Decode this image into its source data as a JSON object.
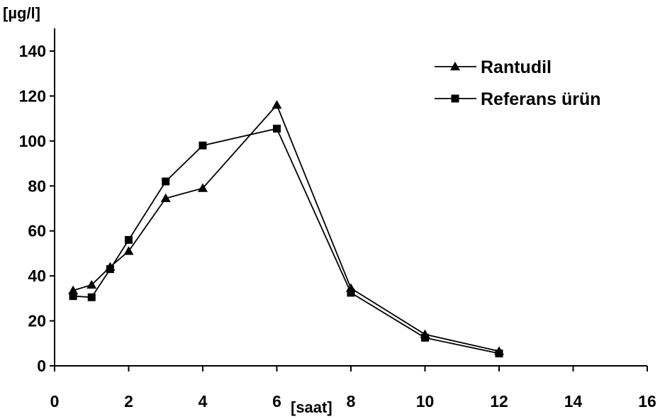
{
  "chart_data": {
    "type": "line",
    "title": "",
    "xlabel": "[saat]",
    "ylabel": "[µg/l]",
    "xlim": [
      0,
      16
    ],
    "ylim": [
      0,
      140
    ],
    "x_ticks": [
      0,
      2,
      4,
      6,
      8,
      10,
      12,
      14,
      16
    ],
    "y_ticks": [
      0,
      20,
      40,
      60,
      80,
      100,
      120,
      140
    ],
    "x_tick_labels": [
      "0",
      "2",
      "4",
      "6",
      "8",
      "10",
      "12",
      "14",
      "16"
    ],
    "y_tick_labels": [
      "0",
      "20",
      "40",
      "60",
      "80",
      "100",
      "120",
      "140"
    ],
    "grid": false,
    "legend_position": "top-right",
    "series": [
      {
        "name": "Rantudil",
        "marker": "triangle",
        "color": "#000000",
        "x": [
          0.5,
          1,
          1.5,
          2,
          3,
          4,
          6,
          8,
          10,
          12
        ],
        "y": [
          33.5,
          36,
          44,
          51,
          74.5,
          79,
          116,
          34.5,
          14,
          6.5
        ]
      },
      {
        "name": "Referans ürün",
        "marker": "square",
        "color": "#000000",
        "x": [
          0.5,
          1,
          1.5,
          2,
          3,
          4,
          6,
          8,
          10,
          12
        ],
        "y": [
          31,
          30.5,
          43,
          56,
          82,
          98,
          105.5,
          32.5,
          12.5,
          5.5
        ]
      }
    ]
  }
}
